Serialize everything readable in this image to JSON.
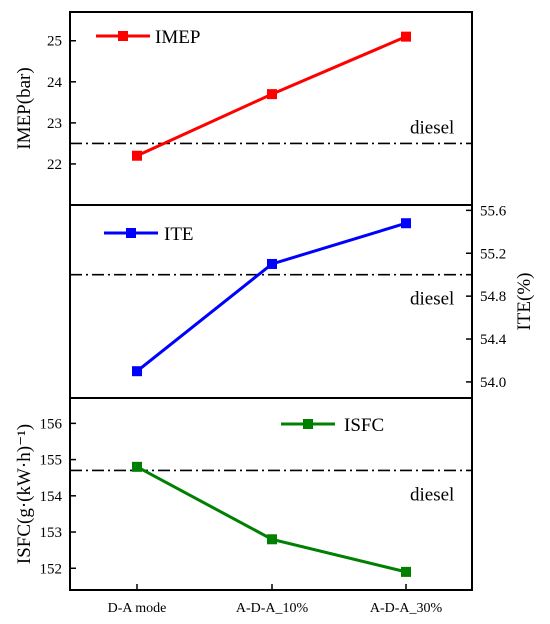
{
  "chart_data": [
    {
      "type": "line",
      "categories": [
        "D-A mode",
        "A-D-A_10%",
        "A-D-A_30%"
      ],
      "series": [
        {
          "name": "IMEP",
          "values": [
            22.2,
            23.7,
            25.1
          ],
          "color": "#ff0000",
          "marker": "square"
        }
      ],
      "ylabel": "IMEP(bar)",
      "yaxis_side": "left",
      "ylim": [
        21.0,
        25.7
      ],
      "yticks": [
        "22",
        "23",
        "24",
        "25"
      ],
      "reference_line": {
        "label": "diesel",
        "value": 22.5,
        "style": "dash-dot"
      },
      "legend_position": "top-left"
    },
    {
      "type": "line",
      "categories": [
        "D-A mode",
        "A-D-A_10%",
        "A-D-A_30%"
      ],
      "series": [
        {
          "name": "ITE",
          "values": [
            54.1,
            55.1,
            55.48
          ],
          "color": "#0000ff",
          "marker": "square"
        }
      ],
      "ylabel": "ITE(%)",
      "yaxis_side": "right",
      "ylim": [
        53.85,
        55.65
      ],
      "yticks": [
        "54.0",
        "54.4",
        "54.8",
        "55.2",
        "55.6"
      ],
      "reference_line": {
        "label": "diesel",
        "value": 55.0,
        "style": "dash-dot"
      },
      "legend_position": "top-left"
    },
    {
      "type": "line",
      "categories": [
        "D-A mode",
        "A-D-A_10%",
        "A-D-A_30%"
      ],
      "series": [
        {
          "name": "ISFC",
          "values": [
            154.8,
            152.8,
            151.9
          ],
          "color": "#008000",
          "marker": "square"
        }
      ],
      "ylabel": "ISFC(g·(kW·h)⁻¹)",
      "yaxis_side": "left",
      "ylim": [
        151.4,
        156.7
      ],
      "yticks": [
        "152",
        "153",
        "154",
        "155",
        "156"
      ],
      "reference_line": {
        "label": "diesel",
        "value": 154.7,
        "style": "dash-dot"
      },
      "legend_position": "top-right"
    }
  ]
}
